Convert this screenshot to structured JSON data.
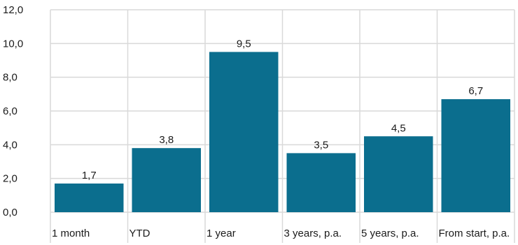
{
  "chart_data": {
    "type": "bar",
    "title": "",
    "xlabel": "",
    "ylabel": "",
    "categories": [
      "1 month",
      "YTD",
      "1 year",
      "3 years, p.a.",
      "5 years, p.a.",
      "From start, p.a."
    ],
    "values": [
      1.7,
      3.8,
      9.5,
      3.5,
      4.5,
      6.7
    ],
    "value_labels": [
      "1,7",
      "3,8",
      "9,5",
      "3,5",
      "4,5",
      "6,7"
    ],
    "ylim": [
      0,
      12
    ],
    "yticks": [
      0,
      2,
      4,
      6,
      8,
      10,
      12
    ],
    "ytick_labels": [
      "0,0",
      "2,0",
      "4,0",
      "6,0",
      "8,0",
      "10,0",
      "12,0"
    ],
    "grid": true,
    "bar_color": "#0b6e8e",
    "grid_color": "#d9d9d9"
  }
}
